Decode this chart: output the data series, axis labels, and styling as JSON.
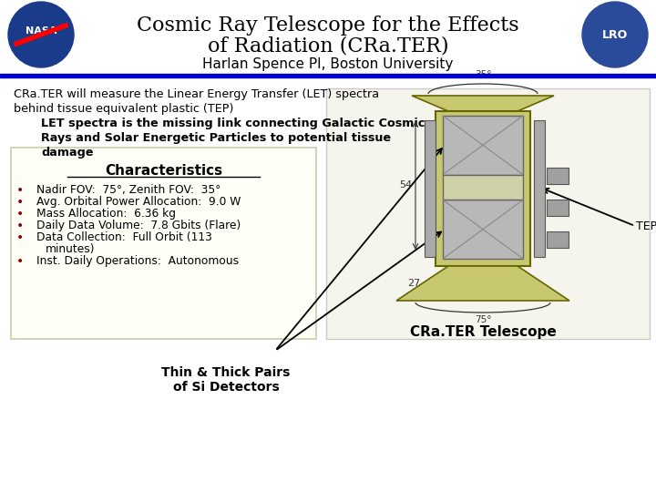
{
  "title_line1": "Cosmic Ray Telescope for the Effects",
  "title_line2": "of Radiation (CRa.TER)",
  "subtitle": "Harlan Spence PI, Boston University",
  "bg_color": "#ffffff",
  "blue_line_color": "#0000cc",
  "title_color": "#000000",
  "subtitle_color": "#000000",
  "body_text_line1": "CRa.TER will measure the Linear Energy Transfer (LET) spectra",
  "body_text_line2": "behind tissue equivalent plastic (TEP)",
  "body_text_indent1": "    LET spectra is the missing link connecting Galactic Cosmic",
  "body_text_indent2": "    Rays and Solar Energetic Particles to potential tissue",
  "body_text_indent3": "    damage",
  "char_title": "Characteristics",
  "bullets": [
    "Nadir FOV:  75°, Zenith FOV:  35°",
    "Avg. Orbital Power Allocation:  9.0 W",
    "Mass Allocation:  6.36 kg",
    "Daily Data Volume:  7.8 Gbits (Flare)",
    "Data Collection:  Full Orbit (113|    minutes)",
    "Inst. Daily Operations:  Autonomous"
  ],
  "bullet_color": "#8b0000",
  "label_thin_thick": "Thin & Thick Pairs\nof Si Detectors",
  "label_tep": "TEP",
  "label_telescope": "CRa.TER Telescope",
  "box_facecolor": "#fffff8",
  "box_edgecolor": "#ccccaa"
}
